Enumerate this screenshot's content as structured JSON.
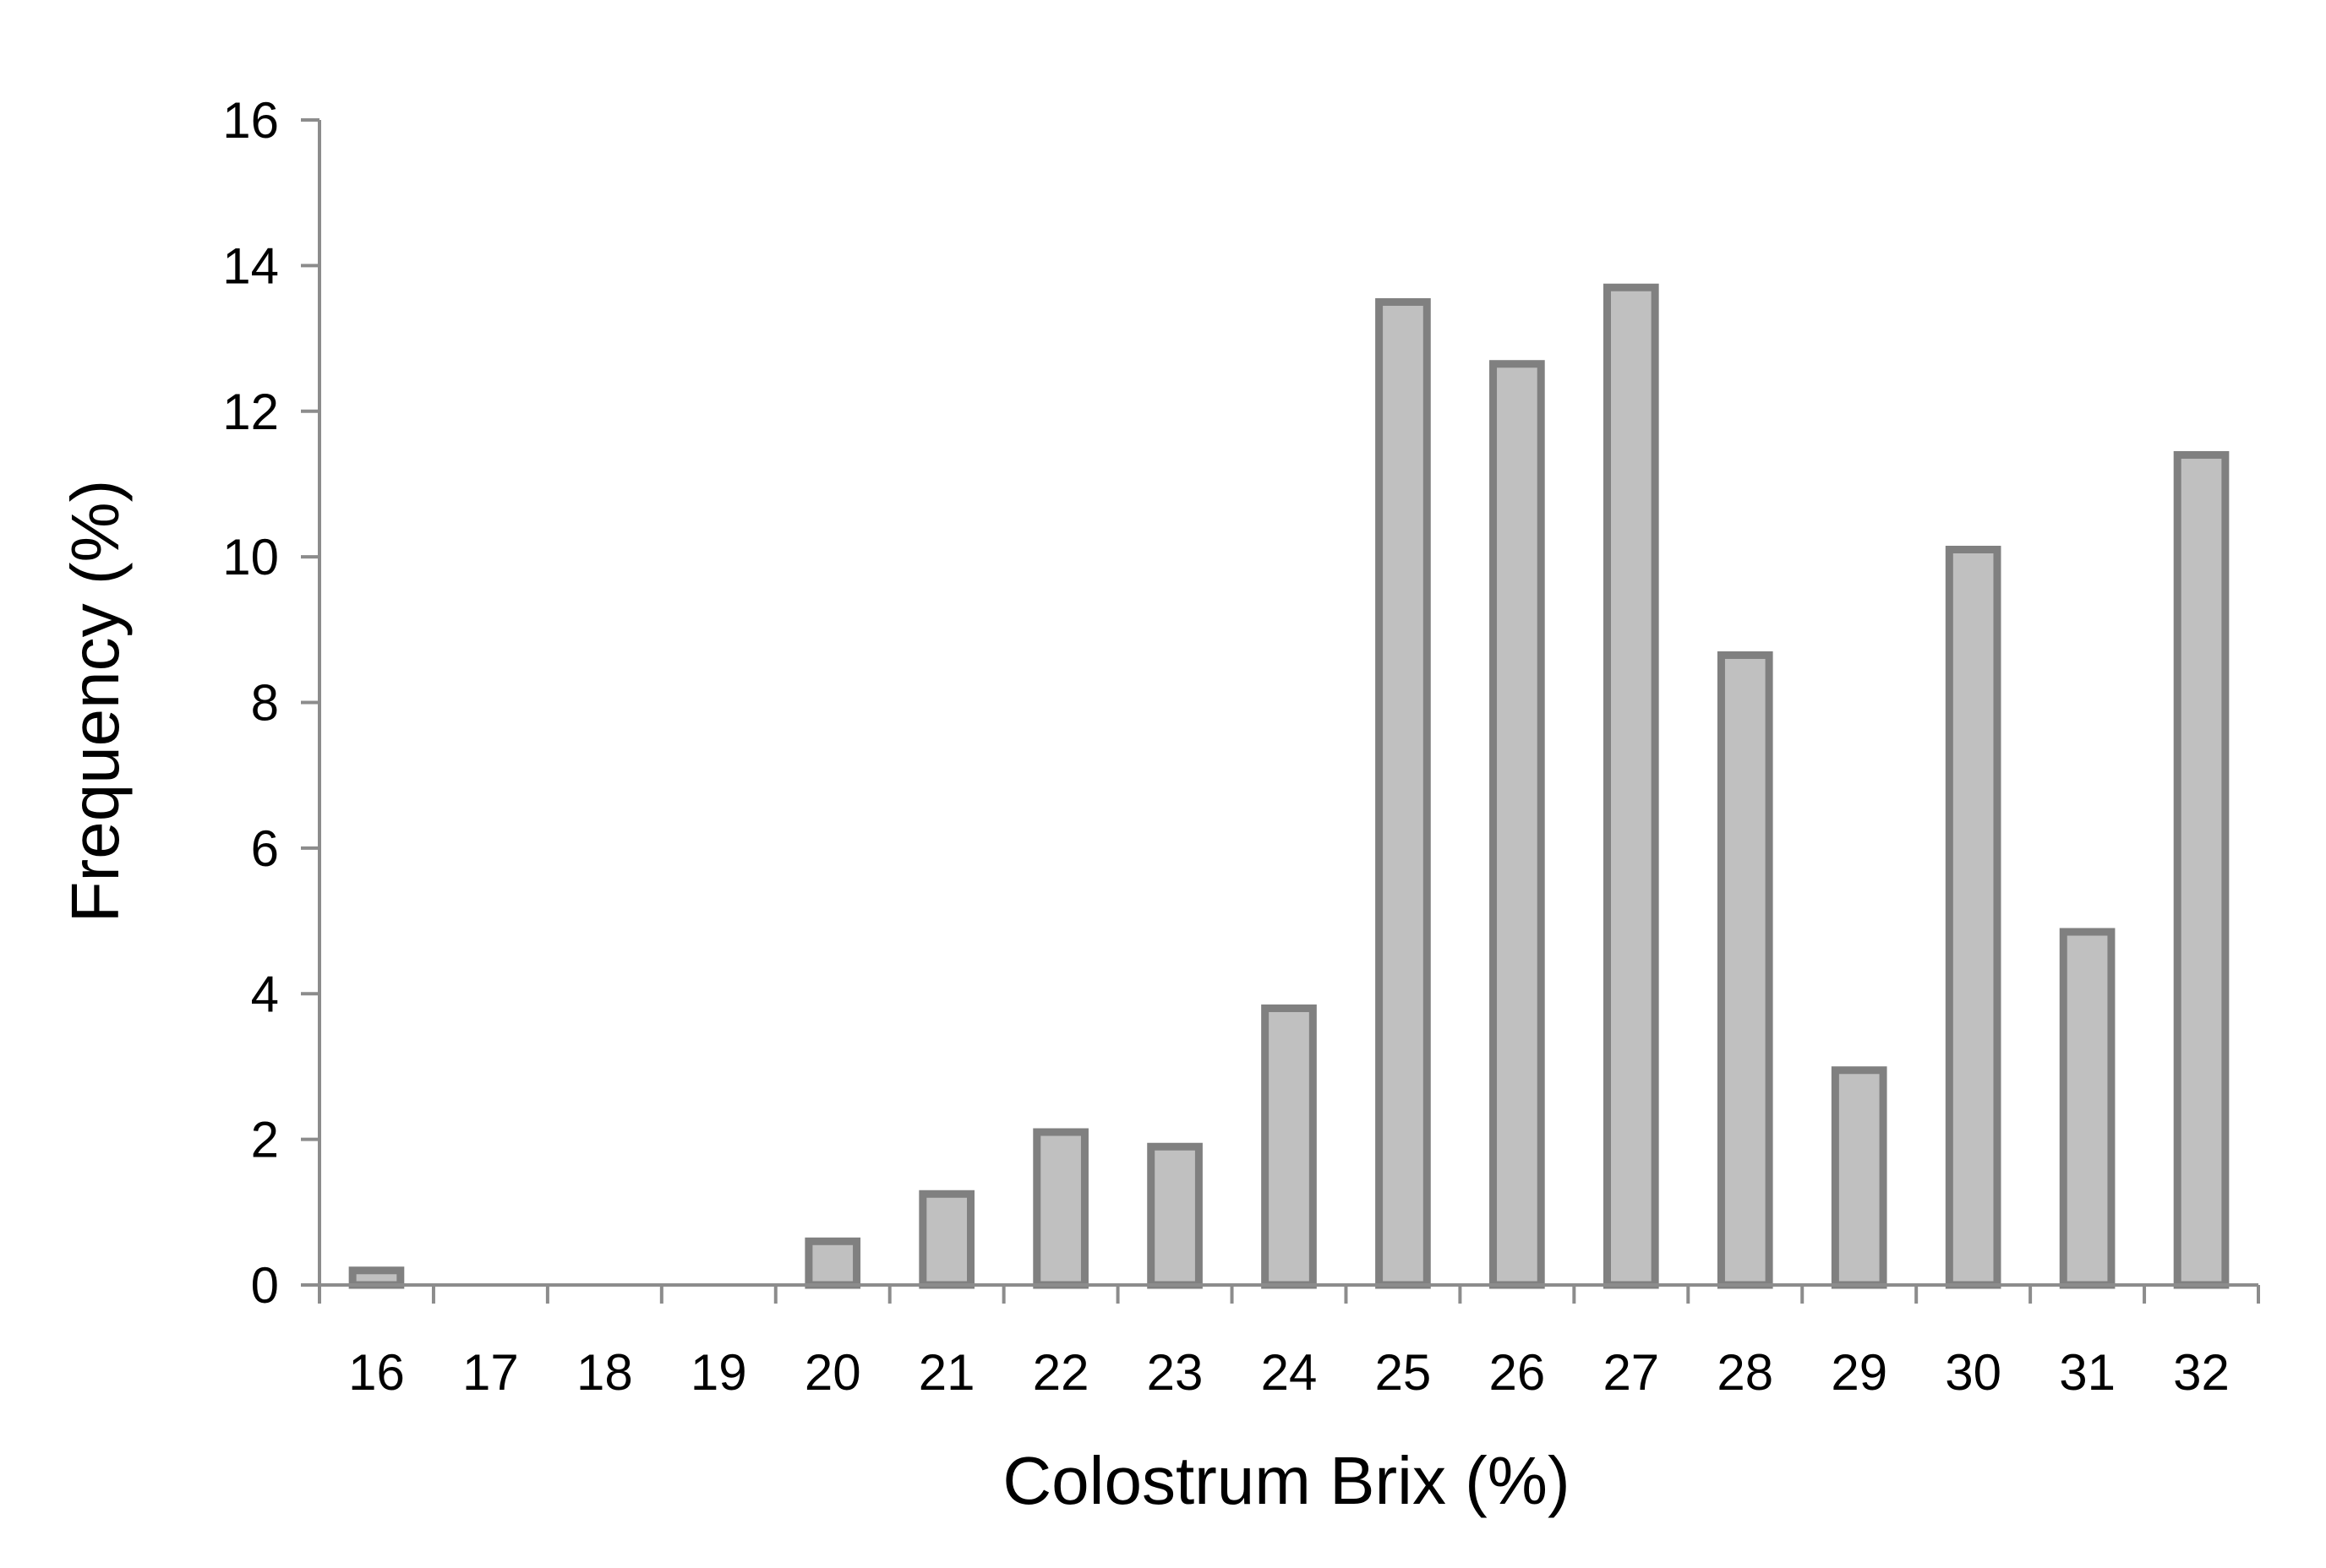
{
  "chart_data": {
    "type": "bar",
    "title": "",
    "xlabel": "Colostrum Brix (%)",
    "ylabel": "Frequency (%)",
    "categories": [
      "16",
      "17",
      "18",
      "19",
      "20",
      "21",
      "22",
      "23",
      "24",
      "25",
      "26",
      "27",
      "28",
      "29",
      "30",
      "31",
      "32"
    ],
    "values": [
      0.2,
      0,
      0,
      0,
      0.6,
      1.25,
      2.1,
      1.9,
      3.8,
      13.5,
      12.65,
      13.7,
      8.65,
      2.95,
      10.1,
      4.85,
      11.4
    ],
    "ylim": [
      0,
      16
    ],
    "yticks": [
      "0",
      "2",
      "4",
      "6",
      "8",
      "10",
      "12",
      "14",
      "16"
    ],
    "grid": false,
    "legend": "none",
    "colors": {
      "bar_fill": "#c0c0c0",
      "bar_stroke": "#808080",
      "axis": "#8c8c8c"
    }
  }
}
